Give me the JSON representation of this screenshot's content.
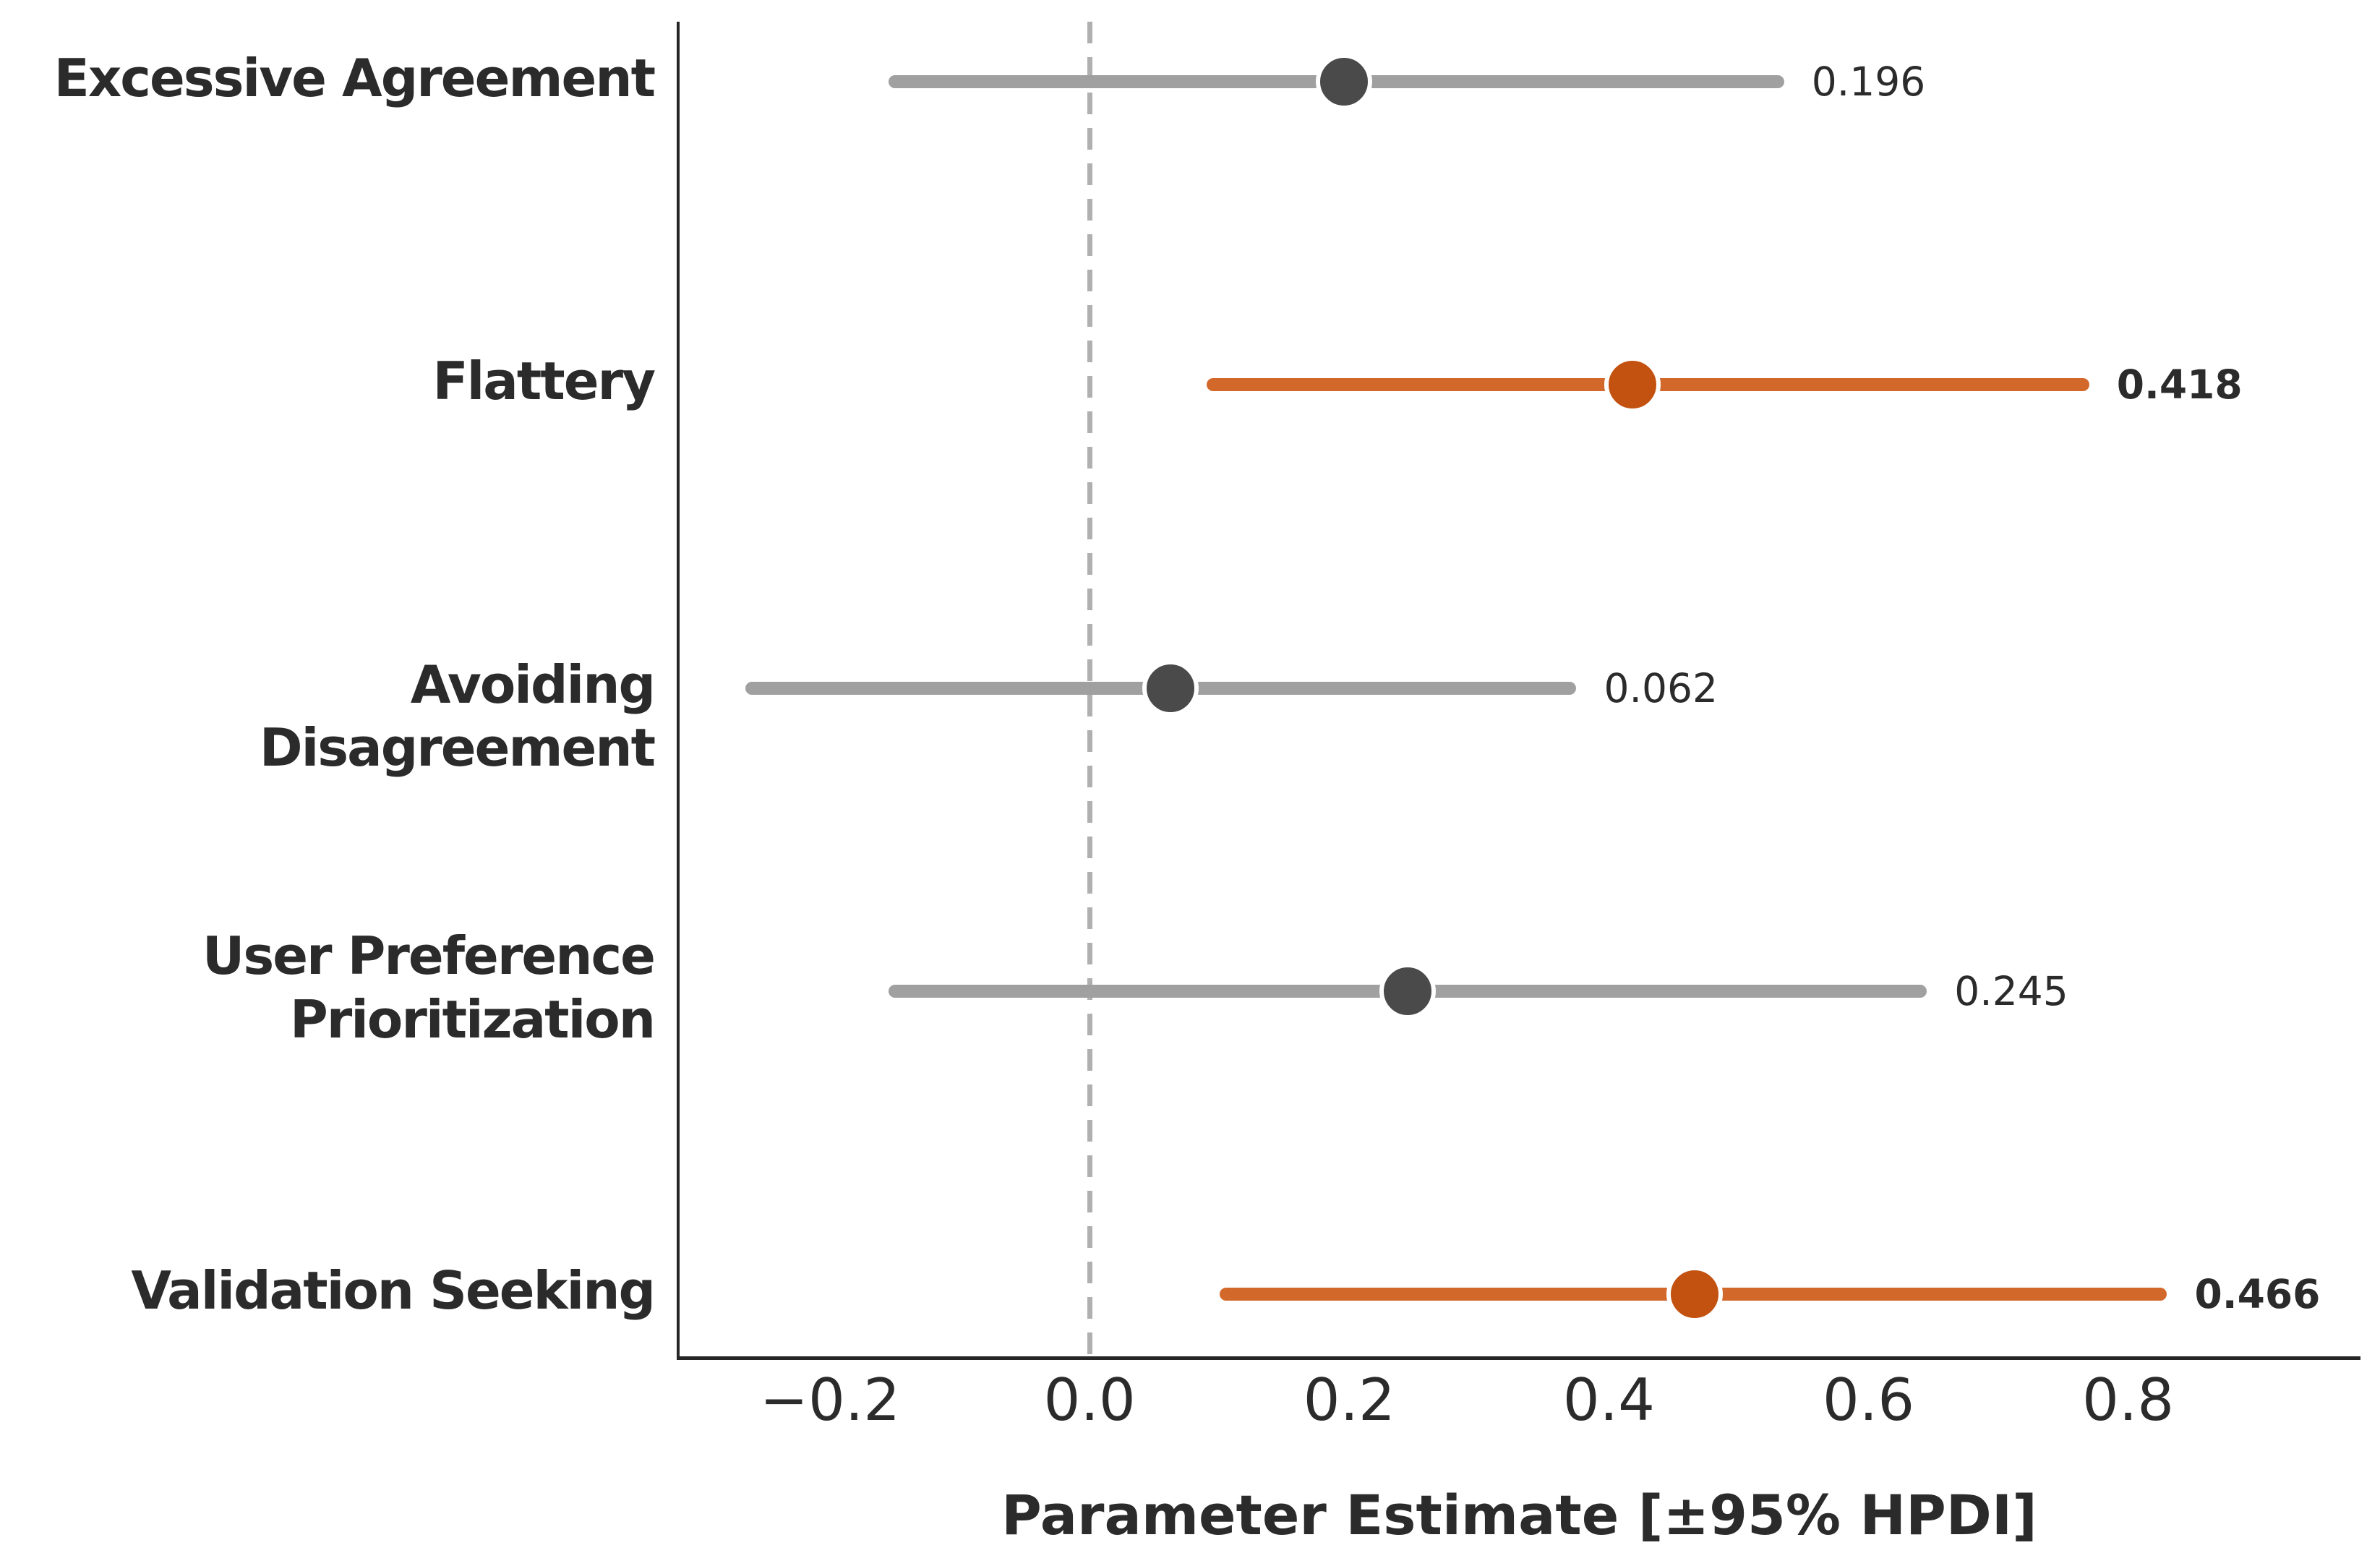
{
  "chart_data": {
    "type": "dot-interval",
    "title": "",
    "xlabel": "Parameter Estimate [±95% HPDI]",
    "xlim": [
      -0.317,
      0.979
    ],
    "xticks": [
      {
        "value": -0.2,
        "label": "−0.2"
      },
      {
        "value": 0.0,
        "label": "0.0"
      },
      {
        "value": 0.2,
        "label": "0.2"
      },
      {
        "value": 0.4,
        "label": "0.4"
      },
      {
        "value": 0.6,
        "label": "0.6"
      },
      {
        "value": 0.8,
        "label": "0.8"
      }
    ],
    "zero_reference_line": 0.0,
    "grid": false,
    "legend": "none",
    "rows": [
      {
        "label": "Excessive Agreement",
        "estimate": 0.196,
        "ci_low": -0.155,
        "ci_high": 0.535,
        "significant": false,
        "value_label": "0.196"
      },
      {
        "label": "Flattery",
        "estimate": 0.418,
        "ci_low": 0.09,
        "ci_high": 0.77,
        "significant": true,
        "value_label": "0.418"
      },
      {
        "label": "Avoiding Disagreement",
        "estimate": 0.062,
        "ci_low": -0.265,
        "ci_high": 0.375,
        "significant": false,
        "value_label": "0.062"
      },
      {
        "label": "User Preference\nPrioritization",
        "estimate": 0.245,
        "ci_low": -0.155,
        "ci_high": 0.645,
        "significant": false,
        "value_label": "0.245"
      },
      {
        "label": "Validation Seeking",
        "estimate": 0.466,
        "ci_low": 0.1,
        "ci_high": 0.83,
        "significant": true,
        "value_label": "0.466"
      }
    ],
    "colors": {
      "significant_bar": "#D3682B",
      "significant_marker": "#C35110",
      "nonsignificant_bar": "#A0A0A0",
      "nonsignificant_marker": "#4A4A4A",
      "zero_line": "#B0B0B0",
      "spine": "#262626",
      "text": "#2B2B2B"
    }
  }
}
